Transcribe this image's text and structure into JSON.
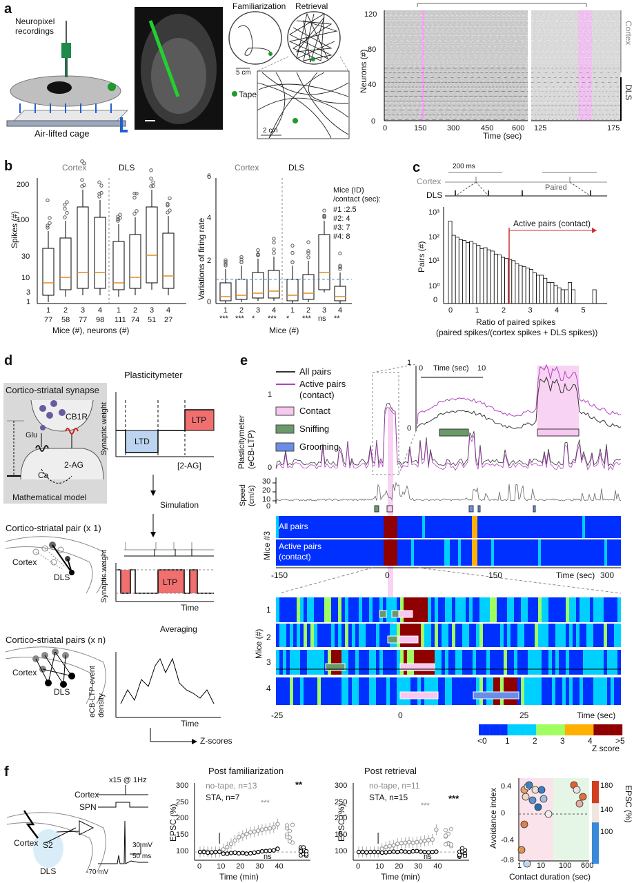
{
  "panel_letters": {
    "a": "a",
    "b": "b",
    "c": "c",
    "d": "d",
    "e": "e",
    "f": "f"
  },
  "panel_a": {
    "neuropixel_label": "Neuropixel\nrecordings",
    "cage_label": "Air-lifted cage",
    "familiarization": "Familiarization",
    "retrieval": "Retrieval",
    "scale_5cm": "5 cm",
    "scale_2cm": "2 cm",
    "tape": "Tape",
    "raster": {
      "ylabel": "Neurons (#)",
      "xlabel": "Time (sec)",
      "yticks": [
        "0",
        "40",
        "80",
        "120"
      ],
      "xticks_left": [
        "0",
        "150",
        "300",
        "450",
        "600"
      ],
      "xticks_right": [
        "125",
        "175"
      ],
      "cortex_label": "Cortex",
      "dls_label": "DLS",
      "colors": {
        "spikes": "#9a9a9a",
        "contact": "#f0a0f0"
      }
    }
  },
  "panel_b": {
    "left": {
      "cortex": "Cortex",
      "dls": "DLS",
      "ylabel": "Spikes (#)",
      "yticks": [
        "1",
        "3",
        "10",
        "30",
        "100",
        "200"
      ],
      "mice": [
        "1",
        "2",
        "3",
        "4",
        "1",
        "2",
        "3",
        "4"
      ],
      "neurons": [
        "77",
        "58",
        "77",
        "98",
        "111",
        "74",
        "51",
        "27"
      ],
      "xlabel": "Mice (#), neurons (#)"
    },
    "right": {
      "cortex": "Cortex",
      "dls": "DLS",
      "ylabel": "Variations of firing rate",
      "yticks": [
        "0",
        "2",
        "4",
        "6"
      ],
      "mice": [
        "1",
        "2",
        "3",
        "4",
        "1",
        "2",
        "3",
        "4"
      ],
      "stars": [
        "***",
        "***",
        "*",
        "***",
        "*",
        "***",
        "ns",
        "**"
      ],
      "xlabel": "Mice (#)",
      "legend_title": "Mice (ID)\n/contact (sec):",
      "legend_items": [
        "#1 :2.5",
        "#2: 4",
        "#3: 7",
        "#4: 8"
      ]
    }
  },
  "panel_c": {
    "ms_label": "200 ms",
    "cortex": "Cortex",
    "dls": "DLS",
    "paired": "Paired",
    "ylabel": "Pairs (#)",
    "active_pairs": "Active pairs (contact)",
    "xlabel": "Ratio of paired spikes",
    "xlabel2": "(paired spikes/(cortex spikes + DLS spikes))",
    "xticks": [
      "0",
      "1",
      "2",
      "3",
      "4",
      "5"
    ],
    "yticks": [
      "0",
      "10⁰",
      "10¹",
      "10²",
      "10³"
    ],
    "chart_data": {
      "type": "bar",
      "xlabel": "Ratio of paired spikes",
      "ylabel": "Pairs (#)",
      "log_y": true,
      "values": [
        700,
        180,
        150,
        120,
        110,
        90,
        100,
        80,
        70,
        50,
        55,
        45,
        40,
        30,
        28,
        22,
        20,
        18,
        16,
        12,
        10,
        9,
        8,
        7,
        5,
        4,
        4,
        3,
        2,
        2,
        1.5,
        1.2,
        1,
        1,
        2,
        1,
        0,
        0,
        0,
        0,
        0,
        1
      ]
    }
  },
  "panel_d": {
    "title": "Plasticitymeter",
    "synapse_title": "Cortico-striatal synapse",
    "cb1r": "CB1R",
    "glu": "Glu",
    "ca": "Ca",
    "ag": "2-AG",
    "math_model": "Mathematical model",
    "ltd": "LTD",
    "ltp": "LTP",
    "ag_axis": "[2-AG]",
    "syn_weight": "Synaptic weight",
    "simulation": "Simulation",
    "pair_title": "Cortico-striatal pair (x 1)",
    "cortex": "Cortex",
    "dls": "DLS",
    "ltp2": "LTP",
    "time": "Time",
    "averaging": "Averaging",
    "pairs_title": "Cortico-striatal pairs (x n)",
    "density": "eCB-LTP-event\ndensity",
    "zscores": "Z-scores"
  },
  "panel_e": {
    "all_pairs": "All pairs",
    "active_pairs": "Active pairs\n(contact)",
    "contact": "Contact",
    "sniffing": "Sniffing",
    "grooming": "Grooming",
    "ylabel": "Plasticitymeter\n(eCB-LTP)",
    "speed": "Speed\n(cm/s)",
    "speed_ticks": [
      "0",
      "10",
      "20",
      "30"
    ],
    "inset_time": "Time (sec)",
    "inset_ticks": [
      "0",
      "10"
    ],
    "yticks": [
      "0",
      "1"
    ],
    "heat_all": "All pairs",
    "heat_active": "Active pairs\n(contact)",
    "mice3": "Mice #3",
    "xticks": [
      "-150",
      "0",
      "150",
      "300"
    ],
    "xlabel": "Time (sec)",
    "mice_label": "Mice (#)",
    "mice_rows": [
      "1",
      "2",
      "3",
      "4"
    ],
    "xticks2": [
      "-25",
      "0",
      "25"
    ],
    "xlabel2": "Time (sec)",
    "colorbar_ticks": [
      "<0",
      "1",
      "2",
      "3",
      "4",
      ">5"
    ],
    "zscore": "Z score",
    "colors": {
      "all": "#333333",
      "active": "#b040c0",
      "contact": "#f8c8f0",
      "sniffing": "#6a9a6a",
      "grooming": "#6a8ee8"
    }
  },
  "panel_f": {
    "x15": "x15 @ 1Hz",
    "cortex": "Cortex",
    "spn": "SPN",
    "cortex2": "Cortex",
    "s2": "S2",
    "dls": "DLS",
    "mv30": "30 mV",
    "ms50": "50 ms",
    "mv70": "-70 mV",
    "fam": {
      "title": "Post familiarization",
      "ylabel": "EPSC (%)",
      "legend1": "no-tape, n=13",
      "legend2": "STA, n=7",
      "sig_top": "**",
      "sig_mid": "***",
      "ns": "ns",
      "xlabel": "Time (min)",
      "xticks": [
        "0",
        "10",
        "20",
        "30",
        "40"
      ],
      "yticks": [
        "100",
        "150",
        "200",
        "250",
        "300"
      ],
      "chart_data": {
        "type": "line",
        "x": [
          0,
          2,
          4,
          6,
          8,
          10,
          12,
          14,
          16,
          18,
          20,
          22,
          24,
          26,
          28,
          30,
          32,
          34,
          36,
          38,
          40
        ],
        "series": [
          {
            "name": "no-tape, n=13",
            "values": [
              100,
              102,
              101,
              99,
              100,
              100,
              108,
              115,
              125,
              135,
              145,
              150,
              155,
              160,
              162,
              165,
              168,
              170,
              172,
              175,
              185
            ]
          },
          {
            "name": "STA, n=7",
            "values": [
              100,
              100,
              98,
              99,
              100,
              101,
              95,
              95,
              97,
              98,
              96,
              97,
              95,
              96,
              98,
              100,
              102,
              103,
              104,
              105,
              110
            ]
          }
        ]
      }
    },
    "ret": {
      "title": "Post retrieval",
      "ylabel": "EPSC (%)",
      "legend1": "no-tape, n=11",
      "legend2": "STA, n=15",
      "sig_top": "***",
      "sig_mid": "***",
      "ns": "ns",
      "xlabel": "Time (min)",
      "xticks": [
        "0",
        "10",
        "20",
        "30",
        "40"
      ],
      "yticks": [
        "100",
        "150",
        "200",
        "250",
        "300"
      ],
      "chart_data": {
        "type": "line",
        "x": [
          0,
          2,
          4,
          6,
          8,
          10,
          12,
          14,
          16,
          18,
          20,
          22,
          24,
          26,
          28,
          30,
          32,
          34,
          36,
          38,
          40
        ],
        "series": [
          {
            "name": "no-tape, n=11",
            "values": [
              100,
              101,
              100,
              100,
              101,
              100,
              110,
              115,
              118,
              120,
              125,
              127,
              128,
              130,
              128,
              130,
              132,
              134,
              136,
              138,
              168
            ]
          },
          {
            "name": "STA, n=15",
            "values": [
              100,
              100,
              99,
              100,
              100,
              100,
              98,
              99,
              100,
              101,
              100,
              102,
              101,
              100,
              102,
              103,
              101,
              100,
              99,
              100,
              101
            ]
          }
        ]
      }
    },
    "scatter": {
      "ylabel": "Avoidance index",
      "xlabel": "Contact duration (sec)",
      "yticks": [
        "-0.8",
        "-0.4",
        "0",
        "0.4"
      ],
      "xticks": [
        "1",
        "10",
        "100",
        "600"
      ],
      "cbar_label": "EPSC (%)",
      "cbar_ticks": [
        "100",
        "140",
        "180"
      ]
    }
  }
}
